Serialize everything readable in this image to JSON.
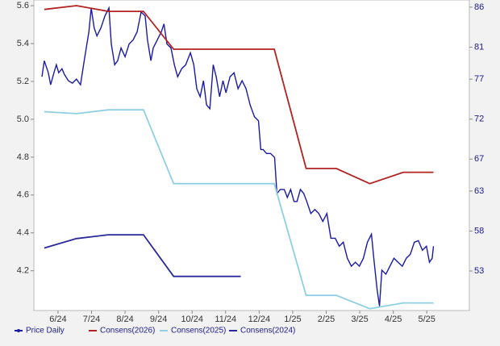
{
  "chart_data": {
    "type": "line",
    "xlim": [
      -0.72,
      12.27
    ],
    "xticks": [
      {
        "value": 0,
        "label": "6/24"
      },
      {
        "value": 1,
        "label": "7/24"
      },
      {
        "value": 2,
        "label": "8/24"
      },
      {
        "value": 3,
        "label": "9/24"
      },
      {
        "value": 4,
        "label": "10/24"
      },
      {
        "value": 5,
        "label": "11/24"
      },
      {
        "value": 6,
        "label": "12/24"
      },
      {
        "value": 7,
        "label": "1/25"
      },
      {
        "value": 8,
        "label": "2/25"
      },
      {
        "value": 9,
        "label": "3/25"
      },
      {
        "value": 10,
        "label": "4/25"
      },
      {
        "value": 11,
        "label": "5/25"
      }
    ],
    "ylim": [
      3.99,
      5.63
    ],
    "yticks": [
      {
        "value": 4.2,
        "label": "4.2"
      },
      {
        "value": 4.4,
        "label": "4.4"
      },
      {
        "value": 4.6,
        "label": "4.6"
      },
      {
        "value": 4.8,
        "label": "4.8"
      },
      {
        "value": 5.0,
        "label": "5.0"
      },
      {
        "value": 5.2,
        "label": "5.2"
      },
      {
        "value": 5.4,
        "label": "5.4"
      },
      {
        "value": 5.6,
        "label": "5.6"
      }
    ],
    "y2lim": [
      48.06,
      86.9
    ],
    "y2ticks": [
      53,
      58,
      63,
      67,
      72,
      77,
      81,
      86
    ],
    "legend": "bottom",
    "series": [
      {
        "name": "Price Daily",
        "color": "#1a1aa6",
        "axis": "y2",
        "marker": true,
        "x": [
          -0.48,
          -0.41,
          -0.29,
          -0.22,
          -0.12,
          -0.05,
          0.02,
          0.12,
          0.19,
          0.31,
          0.43,
          0.55,
          0.67,
          0.8,
          0.92,
          0.99,
          1.08,
          1.16,
          1.28,
          1.4,
          1.52,
          1.59,
          1.69,
          1.78,
          1.88,
          2.0,
          2.12,
          2.24,
          2.36,
          2.48,
          2.6,
          2.67,
          2.77,
          2.84,
          2.96,
          3.08,
          3.16,
          3.25,
          3.37,
          3.47,
          3.57,
          3.69,
          3.81,
          3.95,
          4.05,
          4.14,
          4.24,
          4.34,
          4.43,
          4.53,
          4.63,
          4.72,
          4.82,
          4.92,
          5.01,
          5.13,
          5.25,
          5.37,
          5.49,
          5.61,
          5.73,
          5.86,
          5.98,
          6.05,
          6.12,
          6.22,
          6.34,
          6.46,
          6.53,
          6.63,
          6.75,
          6.84,
          6.94,
          7.04,
          7.13,
          7.23,
          7.33,
          7.42,
          7.54,
          7.66,
          7.78,
          7.9,
          8.02,
          8.14,
          8.27,
          8.39,
          8.51,
          8.63,
          8.75,
          8.87,
          8.99,
          9.11,
          9.23,
          9.35,
          9.42,
          9.52,
          9.59,
          9.66,
          9.78,
          9.9,
          10.02,
          10.14,
          10.27,
          10.39,
          10.51,
          10.63,
          10.75,
          10.87,
          10.99,
          11.08,
          11.16,
          11.2
        ],
        "values": [
          77.3,
          79.3,
          77.8,
          76.3,
          77.8,
          78.8,
          77.8,
          78.3,
          77.6,
          76.8,
          76.5,
          77.0,
          76.3,
          79.8,
          82.9,
          85.9,
          83.4,
          82.4,
          83.4,
          84.9,
          85.9,
          81.4,
          78.8,
          79.3,
          80.9,
          79.8,
          81.4,
          81.9,
          82.9,
          85.4,
          84.9,
          81.9,
          79.3,
          80.9,
          81.9,
          82.9,
          83.9,
          81.4,
          80.9,
          78.8,
          77.3,
          78.3,
          78.8,
          80.3,
          78.8,
          75.8,
          74.8,
          76.8,
          73.8,
          73.3,
          78.8,
          77.3,
          74.8,
          76.8,
          75.3,
          77.3,
          77.8,
          75.8,
          76.8,
          75.8,
          73.8,
          72.3,
          71.8,
          68.2,
          68.2,
          67.7,
          67.7,
          67.2,
          62.7,
          63.2,
          63.2,
          62.2,
          63.2,
          61.7,
          61.7,
          63.2,
          62.7,
          61.7,
          60.2,
          60.7,
          60.2,
          59.2,
          60.2,
          57.1,
          57.1,
          56.1,
          56.6,
          54.6,
          53.6,
          54.1,
          53.6,
          54.6,
          56.6,
          57.6,
          54.6,
          50.6,
          48.6,
          53.1,
          52.6,
          53.6,
          54.6,
          54.1,
          53.6,
          54.6,
          55.1,
          56.6,
          56.8,
          55.6,
          56.1,
          54.1,
          54.6,
          56.1
        ]
      },
      {
        "name": "Consens(2026)",
        "color": "#b22222",
        "x": [
          -0.41,
          0.55,
          1.5,
          2.55,
          3.45,
          6.45,
          7.4,
          8.3,
          9.3,
          10.3,
          11.2
        ],
        "values": [
          5.58,
          5.6,
          5.57,
          5.57,
          5.37,
          5.37,
          4.74,
          4.74,
          4.66,
          4.72,
          4.72
        ]
      },
      {
        "name": "Consens(2025)",
        "color": "#8fcfe3",
        "x": [
          -0.41,
          0.55,
          1.5,
          2.55,
          3.45,
          6.45,
          7.4,
          8.3,
          9.3,
          10.3,
          11.2
        ],
        "values": [
          5.04,
          5.03,
          5.05,
          5.05,
          4.66,
          4.66,
          4.07,
          4.07,
          4.0,
          4.03,
          4.03
        ]
      },
      {
        "name": "Consens(2024)",
        "color": "#2a2a9a",
        "x": [
          -0.41,
          0.55,
          1.5,
          2.55,
          3.45,
          5.45
        ],
        "values": [
          4.32,
          4.37,
          4.39,
          4.39,
          4.17,
          4.17
        ]
      }
    ]
  }
}
